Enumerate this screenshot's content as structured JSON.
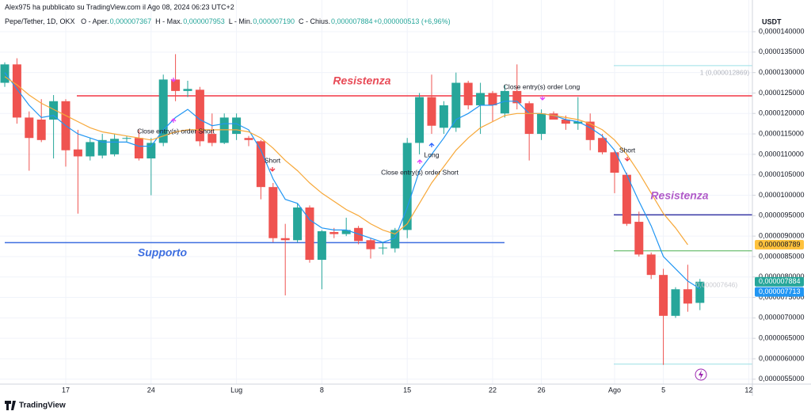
{
  "chart_data": {
    "type": "candlestick",
    "author": "Alex975 ha pubblicato su TradingView.com il Ago 08, 2024 06:23 UTC+2",
    "symbol": "Pepe/Tether, 1D, OKX",
    "ohlc_legend": [
      {
        "key": "O - Aper.",
        "value": "0,000007367"
      },
      {
        "key": "H - Max.",
        "value": "0,000007953"
      },
      {
        "key": "L - Min.",
        "value": "0,000007190"
      },
      {
        "key": "C - Chius.",
        "value": "0,000007884"
      }
    ],
    "change": "+0,000000513 (+6,96%)",
    "currency": "USDT",
    "brand": "TradingView",
    "up_color": "#26a69a",
    "down_color": "#ef5350",
    "grid": true,
    "xlim": [
      -0.39,
      61.3
    ],
    "xticks": [
      {
        "value": 5,
        "label": "17"
      },
      {
        "value": 12,
        "label": "24"
      },
      {
        "value": 19,
        "label": "Lug"
      },
      {
        "value": 26,
        "label": "8"
      },
      {
        "value": 33,
        "label": "15"
      },
      {
        "value": 40,
        "label": "22"
      },
      {
        "value": 44,
        "label": "26"
      },
      {
        "value": 50,
        "label": "Ago"
      },
      {
        "value": 54,
        "label": "5"
      },
      {
        "value": 61,
        "label": "12"
      }
    ],
    "ylim": [
      5.38e-06,
      1.4194e-05
    ],
    "yticks": [
      {
        "value": 1.4e-05,
        "label": "0,0000140000"
      },
      {
        "value": 1.35e-05,
        "label": "0,0000135000"
      },
      {
        "value": 1.3e-05,
        "label": "0,0000130000"
      },
      {
        "value": 1.25e-05,
        "label": "0,0000125000"
      },
      {
        "value": 1.2e-05,
        "label": "0,0000120000"
      },
      {
        "value": 1.15e-05,
        "label": "0,0000115000"
      },
      {
        "value": 1.1e-05,
        "label": "0,0000110000"
      },
      {
        "value": 1.05e-05,
        "label": "0,0000105000"
      },
      {
        "value": 1e-05,
        "label": "0,0000100000"
      },
      {
        "value": 9.5e-06,
        "label": "0,0000095000"
      },
      {
        "value": 9e-06,
        "label": "0,0000090000"
      },
      {
        "value": 8.5e-06,
        "label": "0,0000085000"
      },
      {
        "value": 8e-06,
        "label": "0,0000080000"
      },
      {
        "value": 7.5e-06,
        "label": "0,0000075000"
      },
      {
        "value": 7e-06,
        "label": "0,0000070000"
      },
      {
        "value": 6.5e-06,
        "label": "0,0000065000"
      },
      {
        "value": 6e-06,
        "label": "0,0000060000"
      },
      {
        "value": 5.5e-06,
        "label": "0,0000055000"
      }
    ],
    "open": [
      1.275e-05,
      1.32e-05,
      1.19e-05,
      1.185e-05,
      1.185e-05,
      1.23e-05,
      1.112e-05,
      1.095e-05,
      1.097e-05,
      1.1e-05,
      1.138e-05,
      1.14e-05,
      1.09e-05,
      1.128e-05,
      1.283e-05,
      1.255e-05,
      1.258e-05,
      1.15e-05,
      1.128e-05,
      1.15e-05,
      1.14e-05,
      1.132e-05,
      1.02e-05,
      8.95e-06,
      8.9e-06,
      9.7e-06,
      8.42e-06,
      9.1e-06,
      9.05e-06,
      9.2e-06,
      8.9e-06,
      8.7e-06,
      8.7e-06,
      9.15e-06,
      1.128e-05,
      1.24e-05,
      1.165e-05,
      1.165e-05,
      1.275e-05,
      1.22e-05,
      1.25e-05,
      1.2e-05,
      1.255e-05,
      1.225e-05,
      1.15e-05,
      1.2e-05,
      1.185e-05,
      1.175e-05,
      1.18e-05,
      1.14e-05,
      1.105e-05,
      1.05e-05,
      9.35e-06,
      8.55e-06,
      8.05e-06,
      7.05e-06,
      7.7e-06,
      7.367e-06
    ],
    "high": [
      1.325e-05,
      1.335e-05,
      1.205e-05,
      1.235e-05,
      1.245e-05,
      1.235e-05,
      1.16e-05,
      1.14e-05,
      1.15e-05,
      1.15e-05,
      1.145e-05,
      1.16e-05,
      1.14e-05,
      1.295e-05,
      1.345e-05,
      1.28e-05,
      1.265e-05,
      1.2e-05,
      1.2e-05,
      1.2e-05,
      1.145e-05,
      1.135e-05,
      1.03e-05,
      9.3e-06,
      9.8e-06,
      9.75e-06,
      9.15e-06,
      9.2e-06,
      9.45e-06,
      9.25e-06,
      8.95e-06,
      8.85e-06,
      9.2e-06,
      1.14e-05,
      1.25e-05,
      1.295e-05,
      1.23e-05,
      1.3e-05,
      1.28e-05,
      1.275e-05,
      1.255e-05,
      1.27e-05,
      1.32e-05,
      1.23e-05,
      1.21e-05,
      1.205e-05,
      1.195e-05,
      1.24e-05,
      1.2e-05,
      1.15e-05,
      1.11e-05,
      1.055e-05,
      9.6e-06,
      8.6e-06,
      8.2e-06,
      7.75e-06,
      8.3e-06,
      7.953e-06
    ],
    "low": [
      1.265e-05,
      1.175e-05,
      1.06e-05,
      1.13e-05,
      1.09e-05,
      1.07e-05,
      9.55e-06,
      1.085e-05,
      1.09e-05,
      1.095e-05,
      1.13e-05,
      1.085e-05,
      1e-05,
      1.12e-05,
      1.23e-05,
      1.24e-05,
      1.12e-05,
      1.12e-05,
      1.125e-05,
      1.135e-05,
      1.12e-05,
      9.9e-06,
      8.85e-06,
      7.55e-06,
      8.85e-06,
      8.35e-06,
      7.7e-06,
      8.95e-06,
      9e-06,
      8.8e-06,
      8.45e-06,
      8.55e-06,
      8.6e-06,
      8.95e-06,
      1.1e-05,
      1.15e-05,
      1.15e-05,
      1.155e-05,
      1.21e-05,
      1.15e-05,
      1.18e-05,
      1.19e-05,
      1.21e-05,
      1.085e-05,
      1.135e-05,
      1.185e-05,
      1.16e-05,
      1.16e-05,
      1.11e-05,
      1.1e-05,
      1.005e-05,
      9.25e-06,
      8.5e-06,
      7.95e-06,
      5.85e-06,
      7e-06,
      7.15e-06,
      7.19e-06
    ],
    "close": [
      1.32e-05,
      1.19e-05,
      1.14e-05,
      1.135e-05,
      1.23e-05,
      1.11e-05,
      1.095e-05,
      1.13e-05,
      1.135e-05,
      1.138e-05,
      1.14e-05,
      1.09e-05,
      1.128e-05,
      1.283e-05,
      1.255e-05,
      1.26e-05,
      1.132e-05,
      1.128e-05,
      1.19e-05,
      1.19e-05,
      1.135e-05,
      1.02e-05,
      8.95e-06,
      8.9e-06,
      9.7e-06,
      8.42e-06,
      9.12e-06,
      9.05e-06,
      9.15e-06,
      8.88e-06,
      8.68e-06,
      8.72e-06,
      9.15e-06,
      1.128e-05,
      1.24e-05,
      1.17e-05,
      1.22e-05,
      1.275e-05,
      1.22e-05,
      1.25e-05,
      1.22e-05,
      1.255e-05,
      1.225e-05,
      1.15e-05,
      1.2e-05,
      1.185e-05,
      1.175e-05,
      1.18e-05,
      1.135e-05,
      1.105e-05,
      1.055e-05,
      9.3e-06,
      8.55e-06,
      8.05e-06,
      7.05e-06,
      7.7e-06,
      7.35e-06,
      7.884e-06
    ],
    "series": [
      {
        "color": "#2196f3",
        "values": [
          1.3e-05,
          1.26e-05,
          1.22e-05,
          1.19e-05,
          1.195e-05,
          1.17e-05,
          1.15e-05,
          1.14e-05,
          1.13e-05,
          1.13e-05,
          1.13e-05,
          1.12e-05,
          1.12e-05,
          1.16e-05,
          1.19e-05,
          1.21e-05,
          1.185e-05,
          1.17e-05,
          1.175e-05,
          1.175e-05,
          1.16e-05,
          1.11e-05,
          1.04e-05,
          9.9e-06,
          9.8e-06,
          9.4e-06,
          9.2e-06,
          9.15e-06,
          9.15e-06,
          9.05e-06,
          8.95e-06,
          8.85e-06,
          8.95e-06,
          9.7e-06,
          1.06e-05,
          1.1e-05,
          1.14e-05,
          1.185e-05,
          1.2e-05,
          1.22e-05,
          1.22e-05,
          1.23e-05,
          1.23e-05,
          1.2e-05,
          1.2e-05,
          1.195e-05,
          1.185e-05,
          1.18e-05,
          1.165e-05,
          1.145e-05,
          1.11e-05,
          1.05e-05,
          9.85e-06,
          9.25e-06,
          8.5e-06,
          8.2e-06,
          7.9e-06,
          7.713e-06
        ]
      },
      {
        "color": "#f7a839",
        "values": [
          1.29e-05,
          1.27e-05,
          1.245e-05,
          1.225e-05,
          1.21e-05,
          1.195e-05,
          1.18e-05,
          1.165e-05,
          1.155e-05,
          1.15e-05,
          1.145e-05,
          1.14e-05,
          1.135e-05,
          1.145e-05,
          1.155e-05,
          1.16e-05,
          1.16e-05,
          1.16e-05,
          1.16e-05,
          1.16e-05,
          1.155e-05,
          1.14e-05,
          1.115e-05,
          1.085e-05,
          1.06e-05,
          1.03e-05,
          1.005e-05,
          9.85e-06,
          9.65e-06,
          9.5e-06,
          9.3e-06,
          9.15e-06,
          9.05e-06,
          9.3e-06,
          9.8e-06,
          1.03e-05,
          1.07e-05,
          1.11e-05,
          1.14e-05,
          1.165e-05,
          1.18e-05,
          1.195e-05,
          1.2e-05,
          1.2e-05,
          1.2e-05,
          1.195e-05,
          1.19e-05,
          1.185e-05,
          1.175e-05,
          1.16e-05,
          1.135e-05,
          1.1e-05,
          1.055e-05,
          1.005e-05,
          9.55e-06,
          9.2e-06,
          8.789e-06,
          null
        ]
      }
    ],
    "levels": [
      {
        "value": 1.243e-05,
        "color": "#f23645"
      },
      {
        "value": 8.84e-06,
        "color": "#3d6ee0"
      },
      {
        "value": 9.52e-06,
        "color": "#3f3fa8"
      },
      {
        "value": 8.64e-06,
        "color": "#4caf50"
      },
      {
        "value": 1.317e-05,
        "color": "#9ce0e6"
      },
      {
        "value": 5.87e-06,
        "color": "#9ce0e6"
      }
    ],
    "price_tags": [
      {
        "value": 8.789e-06,
        "label": "0,000008789",
        "color": "#ffc23d"
      },
      {
        "value": 7.884e-06,
        "label": "0,000007884",
        "color": "#26a69a"
      },
      {
        "value": 7.713e-06,
        "label": "0,000007713",
        "color": "#2196f3"
      }
    ],
    "annotations": [
      {
        "text": "Resistenza",
        "color": "#e84b57"
      },
      {
        "text": "Supporto",
        "color": "#3d6ee0"
      },
      {
        "text": "Resistenza",
        "color": "#b15cc9"
      },
      {
        "text": "Close entry(s) order Short",
        "color": "#131722"
      },
      {
        "text": "Short",
        "color": "#131722"
      },
      {
        "text": "Close entry(s) order Short",
        "color": "#131722"
      },
      {
        "text": "Long",
        "color": "#131722"
      },
      {
        "text": "Close entry(s) order Long",
        "color": "#131722"
      },
      {
        "text": "Short",
        "color": "#131722"
      },
      {
        "text": "1 (0,000012869)",
        "color": "#b2b5be"
      },
      {
        "text": "0,000007646)",
        "color": "#c8cad0"
      }
    ]
  }
}
